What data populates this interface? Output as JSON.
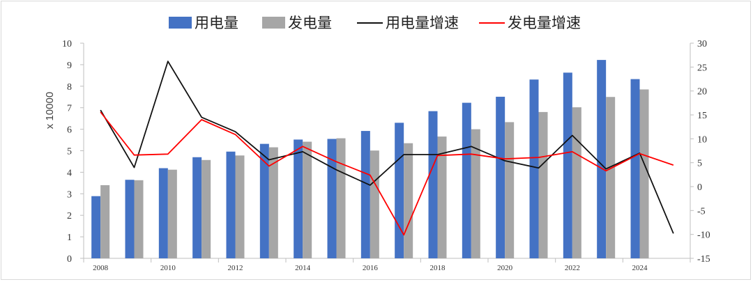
{
  "chart_data": {
    "type": "bar+line",
    "x": [
      2008,
      2009,
      2010,
      2011,
      2012,
      2013,
      2014,
      2015,
      2016,
      2017,
      2018,
      2019,
      2020,
      2021,
      2022,
      2023,
      2024,
      2025
    ],
    "x_tick_labels": [
      "2008",
      "2010",
      "2012",
      "2014",
      "2016",
      "2018",
      "2020",
      "2022",
      "2024"
    ],
    "series": [
      {
        "name": "用电量",
        "type": "bar",
        "axis": "left",
        "color": "#4472c4",
        "values": [
          2.89,
          3.65,
          4.19,
          4.7,
          4.96,
          5.32,
          5.52,
          5.55,
          5.92,
          6.3,
          6.84,
          7.23,
          7.51,
          8.31,
          8.63,
          9.22,
          8.33,
          null
        ]
      },
      {
        "name": "发电量",
        "type": "bar",
        "axis": "left",
        "color": "#a6a6a6",
        "values": [
          3.4,
          3.63,
          4.12,
          4.57,
          4.78,
          5.16,
          5.42,
          5.58,
          5.01,
          5.35,
          5.66,
          6.0,
          6.33,
          6.8,
          7.02,
          7.5,
          7.85,
          null
        ]
      },
      {
        "name": "用电量增速",
        "type": "line",
        "axis": "right",
        "color": "#111111",
        "values": [
          16.0,
          4.0,
          26.2,
          14.5,
          11.5,
          5.6,
          7.3,
          3.5,
          0.3,
          6.7,
          6.7,
          8.4,
          5.4,
          3.9,
          10.7,
          3.7,
          7.0,
          -9.8
        ]
      },
      {
        "name": "发电量增速",
        "type": "line",
        "axis": "right",
        "color": "#ff0000",
        "values": [
          15.6,
          6.6,
          6.8,
          14.0,
          10.9,
          4.3,
          8.4,
          5.2,
          2.4,
          -10.1,
          6.5,
          6.8,
          5.8,
          6.1,
          7.3,
          3.3,
          6.9,
          4.5
        ]
      }
    ],
    "ylabel": "x 10000",
    "ylim": [
      0,
      10
    ],
    "y_ticks": [
      0,
      1,
      2,
      3,
      4,
      5,
      6,
      7,
      8,
      9,
      10
    ],
    "y2lim": [
      -15,
      30
    ],
    "y2_ticks": [
      -15,
      -10,
      -5,
      0,
      5,
      10,
      15,
      20,
      25,
      30
    ],
    "legend_position": "top-center",
    "grid": false
  }
}
